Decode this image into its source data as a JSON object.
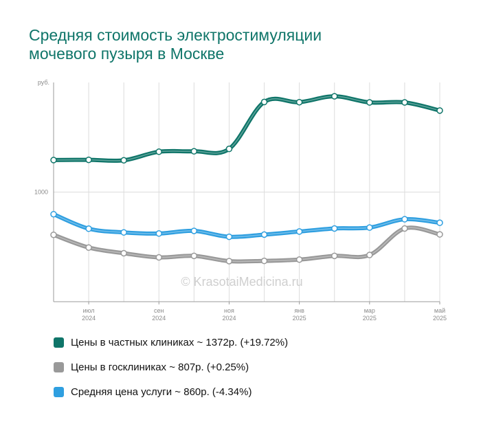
{
  "title_line1": "Средняя стоимость электростимуляции",
  "title_line2": "мочевого пузыря в Москве",
  "watermark": "© KrasotaiMedicina.ru",
  "chart_data": {
    "type": "line",
    "y_unit": "руб.",
    "y_ticks": [
      {
        "value": 1000,
        "label": "1000"
      }
    ],
    "ylim": [
      500,
      1500
    ],
    "x_labels": [
      {
        "index": 1,
        "month": "июл",
        "year": "2024"
      },
      {
        "index": 3,
        "month": "сен",
        "year": "2024"
      },
      {
        "index": 5,
        "month": "ноя",
        "year": "2024"
      },
      {
        "index": 7,
        "month": "янв",
        "year": "2025"
      },
      {
        "index": 9,
        "month": "мар",
        "year": "2025"
      },
      {
        "index": 11,
        "month": "май",
        "year": "2025"
      }
    ],
    "grid": true,
    "legend_position": "bottom",
    "series": [
      {
        "key": "private",
        "color": "#0f7569",
        "values": [
          1146,
          1147,
          1145,
          1184,
          1186,
          1197,
          1411,
          1410,
          1437,
          1409,
          1409,
          1372
        ]
      },
      {
        "key": "public",
        "color": "#999999",
        "values": [
          805,
          747,
          721,
          702,
          709,
          685,
          686,
          692,
          709,
          713,
          834,
          807
        ]
      },
      {
        "key": "average",
        "color": "#2f9fe0",
        "values": [
          899,
          833,
          816,
          811,
          823,
          796,
          806,
          820,
          834,
          838,
          876,
          860
        ]
      }
    ]
  },
  "legend": [
    {
      "label": "Цены в частных клиниках ~ 1372р. (+19.72%)",
      "color": "#0f7569"
    },
    {
      "label": "Цены в госклиниках ~ 807р. (+0.25%)",
      "color": "#999999"
    },
    {
      "label": "Средняя цена услуги ~ 860р. (-4.34%)",
      "color": "#2f9fe0"
    }
  ]
}
